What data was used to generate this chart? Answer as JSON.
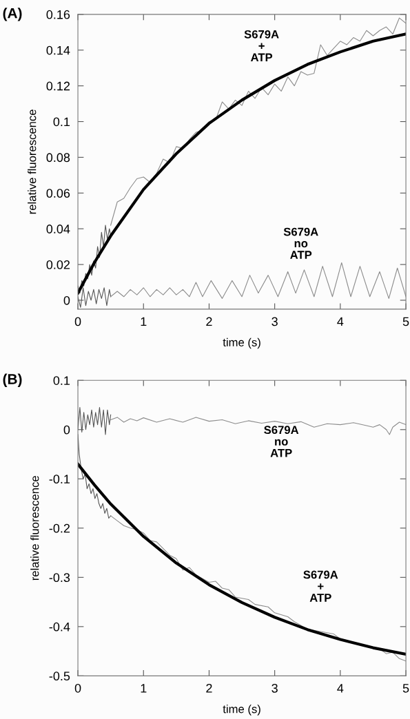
{
  "chart_data": [
    {
      "type": "line",
      "title": "(A)",
      "xlabel": "time (s)",
      "ylabel": "relative fluorescence",
      "xlim": [
        0,
        5
      ],
      "xticks": [
        0,
        1,
        2,
        3,
        4,
        5
      ],
      "ylim": [
        -0.005,
        0.16
      ],
      "yticks": [
        0,
        0.02,
        0.04,
        0.06,
        0.08,
        0.1,
        0.12,
        0.14,
        0.16
      ],
      "grid": false,
      "line_style": "solid",
      "annotations": [
        "S679A\n+\nATP",
        "S679A\nno\nATP"
      ],
      "series": [
        {
          "color": "#555555",
          "x": [
            0,
            0.03,
            0.06,
            0.09,
            0.12,
            0.15,
            0.18,
            0.21,
            0.24,
            0.27,
            0.3,
            0.33,
            0.36,
            0.39,
            0.42,
            0.45,
            0.48,
            0.5
          ],
          "values": [
            0.008,
            0.004,
            0.011,
            0.008,
            0.015,
            0.012,
            0.02,
            0.014,
            0.022,
            0.018,
            0.03,
            0.024,
            0.038,
            0.03,
            0.042,
            0.034,
            0.04,
            0.036
          ]
        },
        {
          "color": "#8c8c8c",
          "x": [
            0.5,
            0.6,
            0.7,
            0.8,
            0.9,
            1.0,
            1.1,
            1.2,
            1.3,
            1.4,
            1.5,
            1.6,
            1.7,
            1.8,
            1.9,
            2.0,
            2.1,
            2.2,
            2.3,
            2.4,
            2.5,
            2.6,
            2.7,
            2.8,
            2.9,
            3.0,
            3.1,
            3.2,
            3.3,
            3.4,
            3.5,
            3.6,
            3.7,
            3.8,
            3.9,
            4.0,
            4.1,
            4.2,
            4.3,
            4.4,
            4.5,
            4.6,
            4.7,
            4.8,
            4.9,
            5.0
          ],
          "values": [
            0.042,
            0.055,
            0.057,
            0.063,
            0.068,
            0.069,
            0.066,
            0.071,
            0.079,
            0.077,
            0.086,
            0.085,
            0.09,
            0.094,
            0.095,
            0.1,
            0.101,
            0.111,
            0.107,
            0.112,
            0.109,
            0.117,
            0.113,
            0.119,
            0.115,
            0.121,
            0.117,
            0.125,
            0.12,
            0.128,
            0.126,
            0.127,
            0.143,
            0.137,
            0.141,
            0.145,
            0.143,
            0.147,
            0.145,
            0.151,
            0.148,
            0.151,
            0.153,
            0.149,
            0.158,
            0.155
          ]
        },
        {
          "color": "#555555",
          "x": [
            0,
            0.04,
            0.08,
            0.12,
            0.16,
            0.2,
            0.24,
            0.28,
            0.32,
            0.36,
            0.4,
            0.44,
            0.48,
            0.5
          ],
          "values": [
            0.002,
            -0.004,
            0.007,
            -0.003,
            0.005,
            0.0,
            0.006,
            -0.002,
            0.006,
            0.001,
            0.007,
            -0.003,
            0.006,
            0.002
          ]
        },
        {
          "color": "#8c8c8c",
          "x": [
            0.5,
            0.6,
            0.7,
            0.8,
            0.9,
            1.0,
            1.1,
            1.2,
            1.3,
            1.4,
            1.5,
            1.6,
            1.7,
            1.8,
            1.9,
            2.03,
            2.2,
            2.35,
            2.5,
            2.62,
            2.75,
            2.9,
            3.05,
            3.2,
            3.32,
            3.45,
            3.6,
            3.73,
            3.88,
            4.02,
            4.16,
            4.3,
            4.45,
            4.6,
            4.74,
            4.87,
            5.0
          ],
          "values": [
            0.002,
            0.005,
            0.002,
            0.006,
            0.003,
            0.007,
            0.002,
            0.006,
            0.003,
            0.007,
            0.003,
            0.006,
            0.002,
            0.01,
            0.002,
            0.011,
            0.001,
            0.011,
            0.002,
            0.014,
            0.004,
            0.014,
            0.002,
            0.016,
            0.004,
            0.017,
            0.002,
            0.019,
            0.002,
            0.021,
            0.002,
            0.019,
            0.002,
            0.016,
            0.001,
            0.018,
            0.002
          ]
        },
        {
          "color": "#000000",
          "x": [
            0,
            0.25,
            0.5,
            1,
            1.5,
            2,
            2.5,
            3,
            3.5,
            4,
            4.5,
            5
          ],
          "values": [
            0.004,
            0.021,
            0.036,
            0.062,
            0.082,
            0.099,
            0.112,
            0.123,
            0.132,
            0.139,
            0.145,
            0.149
          ]
        }
      ]
    },
    {
      "type": "line",
      "title": "(B)",
      "xlabel": "time (s)",
      "ylabel": "relative fluorescence",
      "xlim": [
        0,
        5
      ],
      "xticks": [
        0,
        1,
        2,
        3,
        4,
        5
      ],
      "ylim": [
        -0.5,
        0.1
      ],
      "yticks": [
        -0.5,
        -0.4,
        -0.3,
        -0.2,
        -0.1,
        0,
        0.1
      ],
      "grid": false,
      "line_style": "solid",
      "annotations": [
        "S679A\nno\nATP",
        "S679A\n+\nATP"
      ],
      "series": [
        {
          "color": "#555555",
          "x": [
            0,
            0.02,
            0.05,
            0.08,
            0.11,
            0.14,
            0.17,
            0.2,
            0.23,
            0.26,
            0.29,
            0.32,
            0.35,
            0.38,
            0.41,
            0.44,
            0.47,
            0.5
          ],
          "values": [
            -0.01,
            -0.05,
            -0.08,
            -0.1,
            -0.09,
            -0.12,
            -0.11,
            -0.13,
            -0.12,
            -0.14,
            -0.13,
            -0.15,
            -0.16,
            -0.15,
            -0.17,
            -0.16,
            -0.18,
            -0.175
          ]
        },
        {
          "color": "#8c8c8c",
          "x": [
            0.5,
            0.6,
            0.7,
            0.8,
            0.9,
            1.0,
            1.1,
            1.2,
            1.4,
            1.5,
            1.6,
            1.7,
            1.8,
            2.0,
            2.1,
            2.2,
            2.3,
            2.4,
            2.6,
            2.7,
            2.9,
            3.0,
            3.2,
            3.3,
            3.5,
            3.7,
            3.9,
            4.0,
            4.2,
            4.4,
            4.6,
            4.7,
            4.8,
            4.9,
            5.0
          ],
          "values": [
            -0.175,
            -0.185,
            -0.195,
            -0.2,
            -0.203,
            -0.21,
            -0.225,
            -0.228,
            -0.255,
            -0.262,
            -0.285,
            -0.28,
            -0.295,
            -0.31,
            -0.308,
            -0.322,
            -0.325,
            -0.34,
            -0.345,
            -0.355,
            -0.36,
            -0.372,
            -0.38,
            -0.39,
            -0.405,
            -0.41,
            -0.415,
            -0.425,
            -0.432,
            -0.44,
            -0.445,
            -0.455,
            -0.452,
            -0.465,
            -0.47
          ]
        },
        {
          "color": "#555555",
          "x": [
            0,
            0.03,
            0.06,
            0.09,
            0.12,
            0.15,
            0.18,
            0.21,
            0.24,
            0.27,
            0.3,
            0.33,
            0.36,
            0.39,
            0.42,
            0.45,
            0.48,
            0.5
          ],
          "values": [
            0.0,
            0.045,
            -0.005,
            0.035,
            0.0,
            0.03,
            0.01,
            0.04,
            0.005,
            0.035,
            0.01,
            0.045,
            0.005,
            0.04,
            -0.01,
            0.04,
            0.01,
            0.03
          ]
        },
        {
          "color": "#8c8c8c",
          "x": [
            0.5,
            0.6,
            0.7,
            0.8,
            0.9,
            1.0,
            1.2,
            1.4,
            1.6,
            1.8,
            2.0,
            2.2,
            2.4,
            2.6,
            2.8,
            3.0,
            3.2,
            3.4,
            3.6,
            3.8,
            4.0,
            4.2,
            4.4,
            4.5,
            4.6,
            4.7,
            4.75,
            4.8,
            4.9,
            5.0
          ],
          "values": [
            0.02,
            0.025,
            0.015,
            0.022,
            0.018,
            0.024,
            0.015,
            0.022,
            0.015,
            0.025,
            0.017,
            0.02,
            0.012,
            0.018,
            0.013,
            0.017,
            0.012,
            0.016,
            0.005,
            0.012,
            0.01,
            0.014,
            0.008,
            0.005,
            0.01,
            0.0,
            -0.01,
            0.005,
            0.015,
            0.01
          ]
        },
        {
          "color": "#000000",
          "x": [
            0,
            0.25,
            0.5,
            1,
            1.5,
            2,
            2.5,
            3,
            3.5,
            4,
            4.5,
            5
          ],
          "values": [
            -0.07,
            -0.112,
            -0.151,
            -0.217,
            -0.271,
            -0.315,
            -0.351,
            -0.381,
            -0.406,
            -0.426,
            -0.443,
            -0.456
          ]
        }
      ]
    }
  ]
}
